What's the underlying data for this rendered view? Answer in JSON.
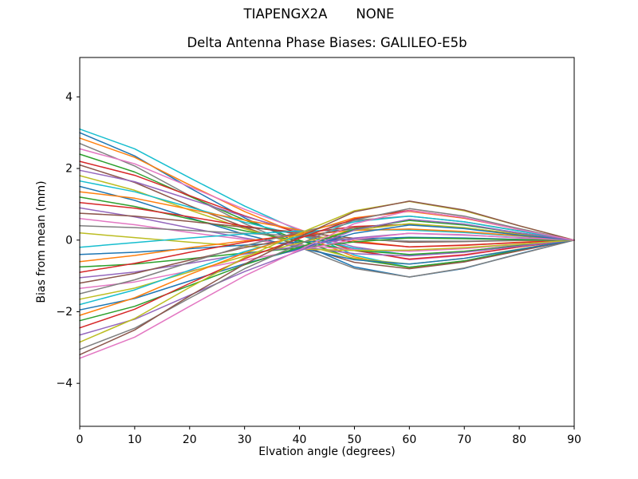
{
  "chart_data": {
    "type": "line",
    "suptitle": "TIAPENGX2A      NONE",
    "suptitle_parts": [
      "TIAPENGX2A",
      "NONE"
    ],
    "title": "Delta Antenna Phase Biases: GALILEO-E5b",
    "xlabel": "Elvation angle (degrees)",
    "ylabel": "Bias from mean (mm)",
    "xlim": [
      0,
      90
    ],
    "ylim": [
      -5.2,
      5.1
    ],
    "xticks": [
      0,
      10,
      20,
      30,
      40,
      50,
      60,
      70,
      80,
      90
    ],
    "yticks": [
      -4,
      -2,
      0,
      2,
      4
    ],
    "grid": false,
    "legend": "none",
    "colors": {
      "background": "#ffffff",
      "spines": "#000000",
      "tick_labels": "#000000"
    },
    "x": [
      0,
      10,
      20,
      30,
      40,
      50,
      60,
      70,
      80,
      90
    ],
    "series": [
      {
        "name": "line-01",
        "color": "#17becf",
        "y": [
          3.1,
          2.55,
          1.74,
          0.95,
          0.26,
          -0.42,
          -0.76,
          -0.58,
          -0.27,
          0
        ]
      },
      {
        "name": "line-02",
        "color": "#1f77b4",
        "y": [
          3.0,
          2.35,
          1.46,
          0.62,
          -0.09,
          -0.75,
          -1.03,
          -0.79,
          -0.38,
          0
        ]
      },
      {
        "name": "line-03",
        "color": "#ff7f0e",
        "y": [
          2.85,
          2.31,
          1.54,
          0.8,
          0.16,
          -0.47,
          -0.77,
          -0.6,
          -0.28,
          0
        ]
      },
      {
        "name": "line-04",
        "color": "#7f7f7f",
        "y": [
          2.7,
          2.07,
          1.24,
          0.46,
          -0.2,
          -0.79,
          -1.03,
          -0.78,
          -0.39,
          0
        ]
      },
      {
        "name": "line-05",
        "color": "#e377c2",
        "y": [
          2.55,
          2.13,
          1.49,
          0.86,
          0.3,
          -0.26,
          -0.55,
          -0.43,
          -0.19,
          0
        ]
      },
      {
        "name": "line-06",
        "color": "#2ca02c",
        "y": [
          2.4,
          1.9,
          1.22,
          0.56,
          0.0,
          -0.53,
          -0.76,
          -0.58,
          -0.28,
          0
        ]
      },
      {
        "name": "line-07",
        "color": "#d62728",
        "y": [
          2.2,
          1.81,
          1.24,
          0.68,
          0.19,
          -0.29,
          -0.53,
          -0.41,
          -0.19,
          0
        ]
      },
      {
        "name": "line-08",
        "color": "#8c564b",
        "y": [
          2.1,
          1.61,
          0.96,
          0.36,
          -0.16,
          -0.62,
          -0.8,
          -0.61,
          -0.3,
          0
        ]
      },
      {
        "name": "line-09",
        "color": "#9467bd",
        "y": [
          1.95,
          1.63,
          1.14,
          0.66,
          0.24,
          -0.19,
          -0.42,
          -0.32,
          -0.14,
          0
        ]
      },
      {
        "name": "line-10",
        "color": "#bcbd22",
        "y": [
          1.8,
          1.39,
          0.84,
          0.32,
          -0.11,
          -0.51,
          -0.67,
          -0.51,
          -0.25,
          0
        ]
      },
      {
        "name": "line-11",
        "color": "#17becf",
        "y": [
          1.65,
          1.35,
          0.92,
          0.5,
          0.13,
          -0.23,
          -0.41,
          -0.32,
          -0.15,
          0
        ]
      },
      {
        "name": "line-12",
        "color": "#1f77b4",
        "y": [
          1.5,
          1.11,
          0.62,
          0.16,
          -0.22,
          -0.55,
          -0.67,
          -0.51,
          -0.26,
          0
        ]
      },
      {
        "name": "line-13",
        "color": "#ff7f0e",
        "y": [
          1.35,
          1.17,
          0.86,
          0.56,
          0.28,
          -0.02,
          -0.19,
          -0.15,
          -0.06,
          0
        ]
      },
      {
        "name": "line-14",
        "color": "#2ca02c",
        "y": [
          1.2,
          0.94,
          0.59,
          0.26,
          -0.03,
          -0.29,
          -0.4,
          -0.31,
          -0.15,
          0
        ]
      },
      {
        "name": "line-15",
        "color": "#d62728",
        "y": [
          1.05,
          0.89,
          0.65,
          0.39,
          0.17,
          -0.06,
          -0.19,
          -0.14,
          -0.07,
          0
        ]
      },
      {
        "name": "line-16",
        "color": "#9467bd",
        "y": [
          0.9,
          0.65,
          0.34,
          0.06,
          -0.18,
          -0.38,
          -0.44,
          -0.34,
          -0.17,
          0
        ]
      },
      {
        "name": "line-17",
        "color": "#8c564b",
        "y": [
          0.75,
          0.67,
          0.52,
          0.36,
          0.22,
          0.05,
          -0.06,
          -0.04,
          -0.01,
          0
        ]
      },
      {
        "name": "line-18",
        "color": "#e377c2",
        "y": [
          0.6,
          0.43,
          0.21,
          0.02,
          -0.14,
          -0.27,
          -0.31,
          -0.24,
          -0.12,
          0
        ]
      },
      {
        "name": "line-19",
        "color": "#7f7f7f",
        "y": [
          0.4,
          0.35,
          0.27,
          0.19,
          0.11,
          0.02,
          -0.03,
          -0.03,
          -0.01,
          0
        ]
      },
      {
        "name": "line-20",
        "color": "#bcbd22",
        "y": [
          0.2,
          0.07,
          -0.06,
          -0.17,
          -0.25,
          -0.29,
          -0.28,
          -0.21,
          -0.11,
          0
        ]
      },
      {
        "name": "line-21",
        "color": "#17becf",
        "y": [
          -0.2,
          -0.07,
          0.06,
          0.17,
          0.25,
          0.29,
          0.28,
          0.21,
          0.11,
          0
        ]
      },
      {
        "name": "line-22",
        "color": "#1f77b4",
        "y": [
          -0.4,
          -0.34,
          -0.24,
          -0.14,
          -0.06,
          0.03,
          0.08,
          0.06,
          0.02,
          0
        ]
      },
      {
        "name": "line-23",
        "color": "#ff7f0e",
        "y": [
          -0.6,
          -0.43,
          -0.21,
          -0.02,
          0.14,
          0.27,
          0.31,
          0.24,
          0.12,
          0
        ]
      },
      {
        "name": "line-24",
        "color": "#2ca02c",
        "y": [
          -0.75,
          -0.67,
          -0.52,
          -0.36,
          -0.22,
          -0.05,
          0.06,
          0.04,
          0.01,
          0
        ]
      },
      {
        "name": "line-25",
        "color": "#d62728",
        "y": [
          -0.9,
          -0.65,
          -0.34,
          -0.06,
          0.18,
          0.38,
          0.44,
          0.34,
          0.17,
          0
        ]
      },
      {
        "name": "line-26",
        "color": "#9467bd",
        "y": [
          -1.05,
          -0.89,
          -0.65,
          -0.39,
          -0.17,
          0.06,
          0.19,
          0.14,
          0.07,
          0
        ]
      },
      {
        "name": "line-27",
        "color": "#8c564b",
        "y": [
          -1.2,
          -0.93,
          -0.56,
          -0.21,
          0.08,
          0.34,
          0.45,
          0.34,
          0.16,
          0
        ]
      },
      {
        "name": "line-28",
        "color": "#e377c2",
        "y": [
          -1.35,
          -1.17,
          -0.86,
          -0.56,
          -0.28,
          0.02,
          0.19,
          0.15,
          0.06,
          0
        ]
      },
      {
        "name": "line-29",
        "color": "#7f7f7f",
        "y": [
          -1.5,
          -1.11,
          -0.62,
          -0.16,
          0.22,
          0.55,
          0.67,
          0.51,
          0.26,
          0
        ]
      },
      {
        "name": "line-30",
        "color": "#bcbd22",
        "y": [
          -1.65,
          -1.34,
          -0.89,
          -0.45,
          -0.08,
          0.28,
          0.46,
          0.35,
          0.16,
          0
        ]
      },
      {
        "name": "line-31",
        "color": "#17becf",
        "y": [
          -1.8,
          -1.39,
          -0.84,
          -0.32,
          0.11,
          0.51,
          0.67,
          0.51,
          0.25,
          0
        ]
      },
      {
        "name": "line-32",
        "color": "#1f77b4",
        "y": [
          -1.95,
          -1.63,
          -1.14,
          -0.66,
          -0.24,
          0.19,
          0.42,
          0.32,
          0.14,
          0
        ]
      },
      {
        "name": "line-33",
        "color": "#ff7f0e",
        "y": [
          -2.1,
          -1.61,
          -0.96,
          -0.36,
          0.16,
          0.62,
          0.8,
          0.61,
          0.3,
          0
        ]
      },
      {
        "name": "line-34",
        "color": "#2ca02c",
        "y": [
          -2.25,
          -1.85,
          -1.27,
          -0.69,
          -0.2,
          0.3,
          0.55,
          0.42,
          0.2,
          0
        ]
      },
      {
        "name": "line-35",
        "color": "#d62728",
        "y": [
          -2.45,
          -1.93,
          -1.21,
          -0.52,
          0.05,
          0.59,
          0.83,
          0.62,
          0.3,
          0
        ]
      },
      {
        "name": "line-36",
        "color": "#9467bd",
        "y": [
          -2.65,
          -2.21,
          -1.54,
          -0.88,
          -0.3,
          0.28,
          0.58,
          0.45,
          0.2,
          0
        ]
      },
      {
        "name": "line-37",
        "color": "#bcbd22",
        "y": [
          -2.85,
          -2.19,
          -1.32,
          -0.49,
          0.19,
          0.82,
          1.08,
          0.82,
          0.4,
          0
        ]
      },
      {
        "name": "line-38",
        "color": "#7f7f7f",
        "y": [
          -3.05,
          -2.46,
          -1.62,
          -0.8,
          -0.11,
          0.56,
          0.88,
          0.67,
          0.32,
          0
        ]
      },
      {
        "name": "line-39",
        "color": "#8c564b",
        "y": [
          -3.2,
          -2.51,
          -1.56,
          -0.67,
          0.09,
          0.79,
          1.09,
          0.84,
          0.4,
          0
        ]
      },
      {
        "name": "line-40",
        "color": "#e377c2",
        "y": [
          -3.3,
          -2.71,
          -1.85,
          -1.0,
          -0.27,
          0.46,
          0.82,
          0.63,
          0.29,
          0
        ]
      }
    ]
  }
}
